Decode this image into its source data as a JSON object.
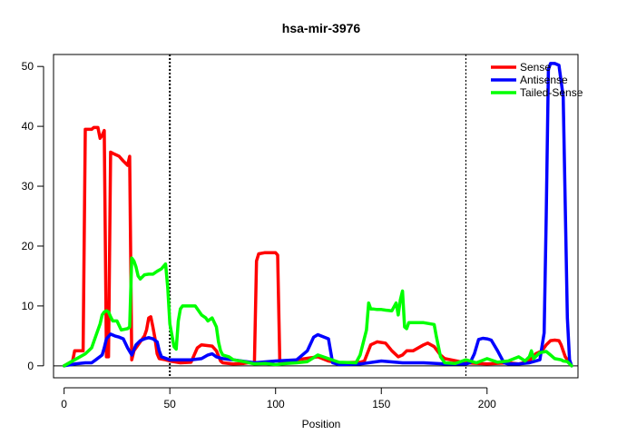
{
  "chart_data": {
    "type": "line",
    "title": "hsa-mir-3976",
    "xlabel": "Position",
    "ylabel": "",
    "xlim": [
      -5,
      243
    ],
    "ylim": [
      -2,
      52
    ],
    "xticks": [
      0,
      50,
      100,
      150,
      200
    ],
    "yticks": [
      0,
      10,
      20,
      30,
      40,
      50
    ],
    "vlines": [
      50,
      190
    ],
    "hline": 0,
    "legend_position": "top-right",
    "series": [
      {
        "name": "Sense",
        "color": "#ff0000",
        "x": [
          0,
          4,
          5,
          9,
          10,
          13,
          14,
          16,
          17,
          18,
          19,
          20,
          21,
          22,
          23,
          26,
          28,
          30,
          31,
          32,
          33,
          34,
          36,
          38,
          39,
          40,
          41,
          42,
          43,
          44,
          45,
          48,
          50,
          55,
          60,
          63,
          65,
          70,
          72,
          74,
          75,
          80,
          85,
          87,
          90,
          91,
          92,
          95,
          100,
          101,
          102,
          105,
          110,
          120,
          125,
          130,
          140,
          142,
          145,
          148,
          152,
          155,
          158,
          160,
          162,
          165,
          170,
          172,
          175,
          178,
          180,
          190,
          200,
          210,
          215,
          220,
          223,
          226,
          228,
          230,
          232,
          234,
          235,
          237,
          240
        ],
        "y": [
          0,
          0.8,
          2.5,
          2.5,
          39.5,
          39.5,
          39.8,
          39.8,
          38,
          38.5,
          39.3,
          1.5,
          1.5,
          35.7,
          35.5,
          35,
          34.2,
          33.5,
          35,
          1,
          2.5,
          3,
          4,
          5,
          6,
          8,
          8.2,
          6.5,
          4.5,
          2,
          1.2,
          1,
          0.8,
          0.5,
          0.6,
          3,
          3.5,
          3.3,
          2.5,
          0.8,
          0.5,
          0.3,
          0.4,
          0.5,
          0.5,
          17.5,
          18.7,
          18.9,
          18.9,
          18.5,
          0.5,
          0.5,
          1,
          1.5,
          0.8,
          0.5,
          0.6,
          0.8,
          3.5,
          4,
          3.8,
          2.5,
          1.5,
          1.8,
          2.5,
          2.5,
          3.5,
          3.8,
          3.2,
          1.8,
          1.2,
          0.5,
          0.3,
          0.5,
          0.3,
          0.8,
          2,
          2.5,
          3.5,
          4.2,
          4.3,
          4.2,
          3.5,
          1.5,
          0
        ]
      },
      {
        "name": "Antisense",
        "color": "#0000ff",
        "x": [
          0,
          5,
          10,
          13,
          15,
          18,
          19,
          20,
          22,
          24,
          26,
          28,
          30,
          32,
          34,
          36,
          38,
          40,
          42,
          44,
          45,
          46,
          50,
          60,
          65,
          68,
          70,
          72,
          75,
          80,
          90,
          100,
          110,
          115,
          118,
          120,
          123,
          125,
          126,
          127,
          130,
          140,
          150,
          160,
          170,
          180,
          190,
          192,
          194,
          196,
          198,
          200,
          202,
          205,
          208,
          210,
          215,
          220,
          225,
          227,
          228,
          229,
          230,
          232,
          234,
          236,
          238,
          239,
          240
        ],
        "y": [
          0,
          0.3,
          0.5,
          0.5,
          1,
          1.8,
          3,
          4.5,
          5.3,
          5,
          4.8,
          4.5,
          3,
          1.8,
          3.5,
          4.2,
          4.5,
          4.7,
          4.5,
          4,
          2.5,
          1.5,
          1,
          1,
          1.2,
          1.8,
          2,
          1.5,
          1.2,
          1,
          0.5,
          0.8,
          1,
          2.5,
          4.8,
          5.2,
          4.8,
          4.5,
          2.5,
          0.5,
          0.2,
          0.3,
          0.8,
          0.5,
          0.5,
          0.3,
          0.3,
          0.5,
          2,
          4.4,
          4.6,
          4.5,
          4.3,
          2.5,
          0.5,
          0.3,
          0.3,
          0.5,
          1,
          5.5,
          25,
          49.5,
          50.5,
          50.5,
          50.2,
          45,
          8,
          1,
          0
        ]
      },
      {
        "name": "Tailed-Sense",
        "color": "#00ff00",
        "x": [
          0,
          5,
          10,
          13,
          15,
          17,
          18,
          19,
          20,
          21,
          22,
          23,
          25,
          27,
          30,
          31,
          32,
          33,
          34,
          35,
          36,
          38,
          40,
          42,
          44,
          46,
          48,
          49,
          50,
          52,
          53,
          54,
          55,
          56,
          58,
          60,
          62,
          65,
          67,
          68,
          70,
          72,
          73,
          74,
          75,
          78,
          80,
          85,
          90,
          95,
          100,
          105,
          110,
          115,
          120,
          125,
          130,
          138,
          140,
          143,
          144,
          145,
          146,
          148,
          150,
          152,
          155,
          157,
          158,
          159,
          160,
          161,
          162,
          163,
          165,
          168,
          170,
          175,
          176,
          178,
          180,
          185,
          190,
          195,
          200,
          205,
          210,
          215,
          218,
          220,
          221,
          222,
          225,
          228,
          230,
          232,
          235,
          236,
          238,
          240
        ],
        "y": [
          0,
          1,
          2,
          3,
          5,
          7,
          8.5,
          9,
          9.2,
          9,
          8.2,
          7.5,
          7.5,
          6,
          6.2,
          6.5,
          18,
          17.5,
          16.5,
          15,
          14.5,
          15.2,
          15.3,
          15.3,
          15.8,
          16.2,
          17,
          13,
          7,
          3.2,
          2.8,
          7.5,
          9.5,
          10,
          10,
          10,
          10,
          8.5,
          8,
          7.5,
          8,
          6.5,
          4,
          2.5,
          1.8,
          1.5,
          1,
          0.7,
          0.3,
          0.4,
          0.2,
          0.4,
          0.5,
          0.7,
          1.8,
          1.2,
          0.6,
          0.5,
          1.8,
          6,
          10.5,
          9.5,
          9.5,
          9.4,
          9.4,
          9.3,
          9.2,
          10.5,
          8.5,
          11,
          12.5,
          6.5,
          6.2,
          7.2,
          7.2,
          7.2,
          7.2,
          6.9,
          5,
          1.5,
          0.5,
          0.4,
          1,
          0.5,
          1.2,
          0.6,
          0.8,
          1.5,
          0.8,
          1.5,
          2.5,
          1.2,
          2.2,
          2.4,
          1.8,
          1.2,
          1,
          0.8,
          0.7,
          0
        ]
      }
    ]
  }
}
